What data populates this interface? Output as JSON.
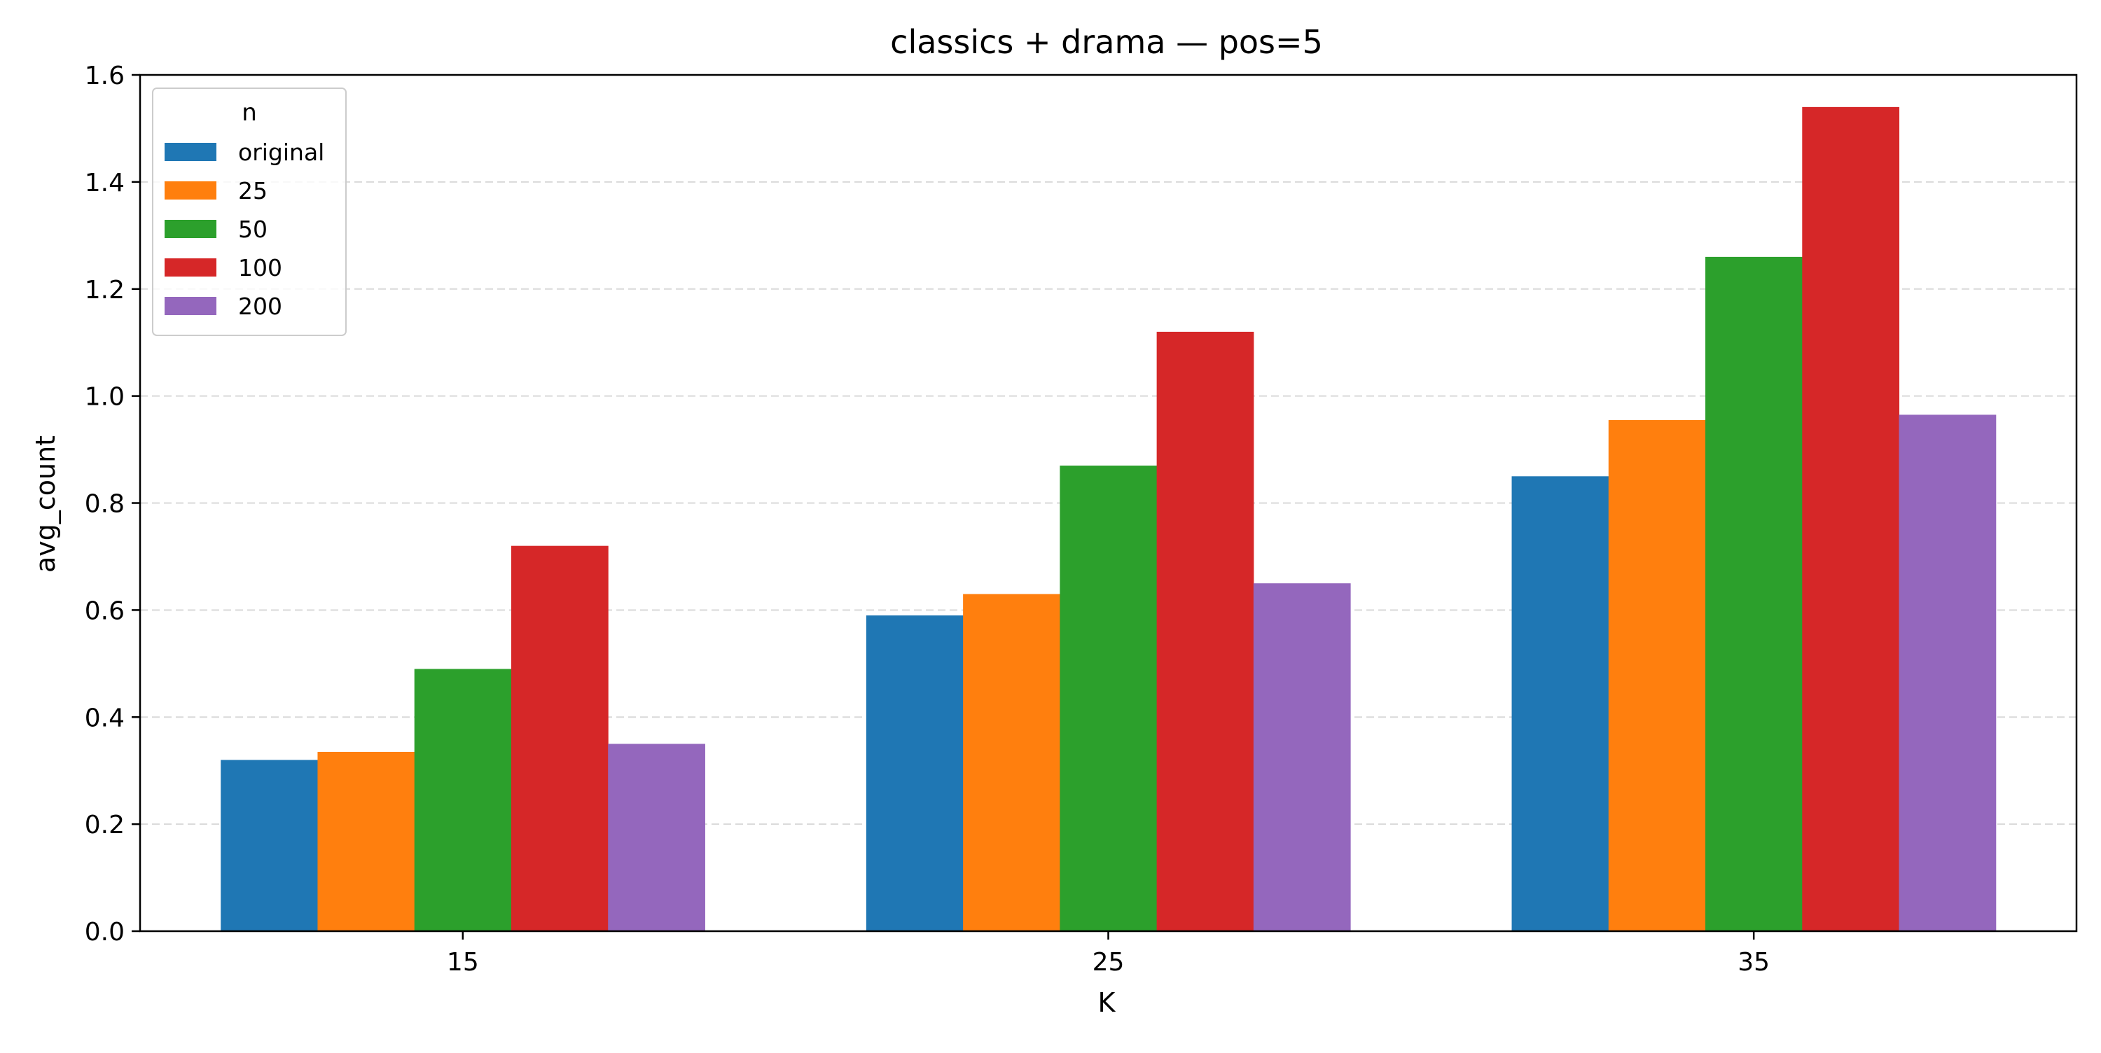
{
  "chart_data": {
    "type": "bar",
    "title": "classics + drama — pos=5",
    "xlabel": "K",
    "ylabel": "avg_count",
    "categories": [
      "15",
      "25",
      "35"
    ],
    "ylim": [
      0,
      1.6
    ],
    "yticks": [
      0.0,
      0.2,
      0.4,
      0.6,
      0.8,
      1.0,
      1.2,
      1.4,
      1.6
    ],
    "ytick_labels": [
      "0.0",
      "0.2",
      "0.4",
      "0.6",
      "0.8",
      "1.0",
      "1.2",
      "1.4",
      "1.6"
    ],
    "grid": "y-dashed",
    "legend": {
      "title": "n",
      "placement": "top-left"
    },
    "series": [
      {
        "name": "original",
        "color": "#1f77b4",
        "values": [
          0.32,
          0.59,
          0.85
        ]
      },
      {
        "name": "25",
        "color": "#ff7f0e",
        "values": [
          0.335,
          0.63,
          0.955
        ]
      },
      {
        "name": "50",
        "color": "#2ca02c",
        "values": [
          0.49,
          0.87,
          1.26
        ]
      },
      {
        "name": "100",
        "color": "#d62728",
        "values": [
          0.72,
          1.12,
          1.54
        ]
      },
      {
        "name": "200",
        "color": "#9467bd",
        "values": [
          0.35,
          0.65,
          0.965
        ]
      }
    ]
  }
}
